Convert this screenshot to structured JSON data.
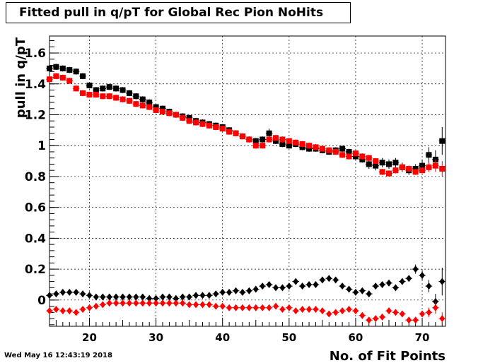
{
  "chart_data": {
    "type": "scatter",
    "title": "Fitted pull in q/pT for Global Rec Pion NoHits",
    "xlabel": "No. of Fit Points",
    "ylabel": "pull in q/pT",
    "xlim": [
      14,
      73.5
    ],
    "ylim": [
      -0.17,
      1.71
    ],
    "x_ticks": [
      20,
      30,
      40,
      50,
      60,
      70
    ],
    "y_ticks": [
      0,
      0.2,
      0.4,
      0.6,
      0.8,
      1,
      1.2,
      1.4,
      1.6
    ],
    "x_tick_labels": [
      "20",
      "30",
      "40",
      "50",
      "60",
      "70"
    ],
    "y_tick_labels": [
      "0",
      "0.2",
      "0.4",
      "0.6",
      "0.8",
      "1",
      "1.2",
      "1.4",
      "1.6"
    ],
    "grid": true,
    "x": [
      14,
      15,
      16,
      17,
      18,
      19,
      20,
      21,
      22,
      23,
      24,
      25,
      26,
      27,
      28,
      29,
      30,
      31,
      32,
      33,
      34,
      35,
      36,
      37,
      38,
      39,
      40,
      41,
      42,
      43,
      44,
      45,
      46,
      47,
      48,
      49,
      50,
      51,
      52,
      53,
      54,
      55,
      56,
      57,
      58,
      59,
      60,
      61,
      62,
      63,
      64,
      65,
      66,
      67,
      68,
      69,
      70,
      71,
      72,
      73
    ],
    "series": [
      {
        "marker": "square",
        "color": "#000000",
        "values": [
          1.5,
          1.51,
          1.5,
          1.49,
          1.48,
          1.45,
          1.39,
          1.36,
          1.37,
          1.38,
          1.37,
          1.36,
          1.34,
          1.32,
          1.3,
          1.28,
          1.25,
          1.24,
          1.22,
          1.2,
          1.19,
          1.18,
          1.16,
          1.15,
          1.14,
          1.13,
          1.12,
          1.1,
          1.08,
          1.06,
          1.04,
          1.03,
          1.04,
          1.08,
          1.03,
          1.01,
          1.0,
          1.01,
          0.99,
          0.98,
          0.98,
          0.97,
          0.96,
          0.97,
          0.98,
          0.96,
          0.93,
          0.91,
          0.88,
          0.87,
          0.89,
          0.88,
          0.89,
          0.86,
          0.84,
          0.85,
          0.87,
          0.94,
          0.91,
          1.03
        ],
        "errors": [
          0.03,
          0.02,
          0.02,
          0.02,
          0.02,
          0.02,
          0.02,
          0.02,
          0.02,
          0.02,
          0.02,
          0.02,
          0.02,
          0.02,
          0.02,
          0.02,
          0.02,
          0.02,
          0.02,
          0.02,
          0.02,
          0.02,
          0.02,
          0.02,
          0.02,
          0.02,
          0.02,
          0.02,
          0.02,
          0.02,
          0.02,
          0.02,
          0.02,
          0.03,
          0.02,
          0.02,
          0.02,
          0.02,
          0.02,
          0.02,
          0.02,
          0.02,
          0.02,
          0.02,
          0.02,
          0.02,
          0.02,
          0.02,
          0.03,
          0.03,
          0.03,
          0.03,
          0.03,
          0.03,
          0.03,
          0.03,
          0.04,
          0.05,
          0.06,
          0.09
        ]
      },
      {
        "marker": "square",
        "color": "#ff0000",
        "values": [
          1.43,
          1.45,
          1.44,
          1.42,
          1.37,
          1.34,
          1.33,
          1.33,
          1.32,
          1.32,
          1.31,
          1.3,
          1.29,
          1.27,
          1.26,
          1.25,
          1.23,
          1.22,
          1.21,
          1.2,
          1.18,
          1.16,
          1.15,
          1.14,
          1.13,
          1.12,
          1.11,
          1.09,
          1.08,
          1.06,
          1.04,
          1.0,
          1.0,
          1.04,
          1.05,
          1.04,
          1.03,
          1.02,
          1.01,
          1.0,
          0.99,
          0.98,
          0.97,
          0.96,
          0.94,
          0.93,
          0.95,
          0.93,
          0.92,
          0.9,
          0.83,
          0.82,
          0.84,
          0.86,
          0.85,
          0.83,
          0.84,
          0.86,
          0.87,
          0.85
        ],
        "errors": [
          0.02,
          0.02,
          0.02,
          0.02,
          0.02,
          0.02,
          0.02,
          0.02,
          0.02,
          0.02,
          0.02,
          0.02,
          0.02,
          0.02,
          0.02,
          0.02,
          0.02,
          0.02,
          0.02,
          0.02,
          0.02,
          0.02,
          0.02,
          0.02,
          0.02,
          0.02,
          0.02,
          0.02,
          0.02,
          0.02,
          0.02,
          0.02,
          0.02,
          0.02,
          0.02,
          0.02,
          0.02,
          0.02,
          0.02,
          0.02,
          0.02,
          0.02,
          0.02,
          0.02,
          0.02,
          0.02,
          0.02,
          0.02,
          0.02,
          0.02,
          0.02,
          0.02,
          0.02,
          0.02,
          0.02,
          0.02,
          0.02,
          0.03,
          0.04,
          0.05
        ]
      },
      {
        "marker": "diamond",
        "color": "#000000",
        "values": [
          0.03,
          0.04,
          0.05,
          0.05,
          0.05,
          0.04,
          0.03,
          0.02,
          0.02,
          0.02,
          0.02,
          0.02,
          0.02,
          0.02,
          0.02,
          0.01,
          0.01,
          0.02,
          0.02,
          0.01,
          0.02,
          0.02,
          0.03,
          0.03,
          0.03,
          0.04,
          0.05,
          0.05,
          0.06,
          0.05,
          0.06,
          0.07,
          0.09,
          0.1,
          0.08,
          0.08,
          0.09,
          0.12,
          0.09,
          0.1,
          0.1,
          0.13,
          0.14,
          0.13,
          0.09,
          0.07,
          0.05,
          0.06,
          0.04,
          0.09,
          0.1,
          0.11,
          0.08,
          0.12,
          0.14,
          0.2,
          0.16,
          0.09,
          -0.01,
          0.12
        ],
        "errors": [
          0.01,
          0.01,
          0.01,
          0.01,
          0.01,
          0.01,
          0.01,
          0.01,
          0.01,
          0.01,
          0.01,
          0.01,
          0.01,
          0.01,
          0.01,
          0.01,
          0.01,
          0.01,
          0.01,
          0.01,
          0.01,
          0.01,
          0.01,
          0.01,
          0.01,
          0.01,
          0.01,
          0.01,
          0.01,
          0.01,
          0.01,
          0.01,
          0.01,
          0.01,
          0.01,
          0.01,
          0.01,
          0.01,
          0.01,
          0.01,
          0.01,
          0.01,
          0.01,
          0.01,
          0.01,
          0.01,
          0.01,
          0.01,
          0.02,
          0.02,
          0.02,
          0.02,
          0.02,
          0.02,
          0.02,
          0.03,
          0.03,
          0.04,
          0.05,
          0.09
        ]
      },
      {
        "marker": "diamond",
        "color": "#ff0000",
        "values": [
          -0.07,
          -0.06,
          -0.07,
          -0.07,
          -0.08,
          -0.06,
          -0.05,
          -0.04,
          -0.03,
          -0.02,
          -0.02,
          -0.02,
          -0.02,
          -0.02,
          -0.02,
          -0.02,
          -0.02,
          -0.02,
          -0.02,
          -0.02,
          -0.02,
          -0.03,
          -0.03,
          -0.03,
          -0.03,
          -0.04,
          -0.04,
          -0.05,
          -0.05,
          -0.05,
          -0.05,
          -0.05,
          -0.05,
          -0.05,
          -0.04,
          -0.06,
          -0.05,
          -0.07,
          -0.06,
          -0.06,
          -0.06,
          -0.07,
          -0.09,
          -0.08,
          -0.07,
          -0.06,
          -0.07,
          -0.1,
          -0.13,
          -0.12,
          -0.11,
          -0.07,
          -0.08,
          -0.09,
          -0.13,
          -0.13,
          -0.09,
          -0.08,
          -0.05,
          -0.12
        ],
        "errors": [
          0.01,
          0.01,
          0.01,
          0.01,
          0.01,
          0.01,
          0.01,
          0.01,
          0.01,
          0.01,
          0.01,
          0.01,
          0.01,
          0.01,
          0.01,
          0.01,
          0.01,
          0.01,
          0.01,
          0.01,
          0.01,
          0.01,
          0.01,
          0.01,
          0.01,
          0.01,
          0.01,
          0.01,
          0.01,
          0.01,
          0.01,
          0.01,
          0.01,
          0.01,
          0.01,
          0.01,
          0.01,
          0.01,
          0.01,
          0.01,
          0.01,
          0.01,
          0.01,
          0.01,
          0.01,
          0.01,
          0.01,
          0.01,
          0.01,
          0.01,
          0.01,
          0.01,
          0.01,
          0.01,
          0.02,
          0.02,
          0.02,
          0.03,
          0.04,
          0.04
        ]
      }
    ]
  },
  "timestamp": "Wed May 16 12:43:19 2018"
}
